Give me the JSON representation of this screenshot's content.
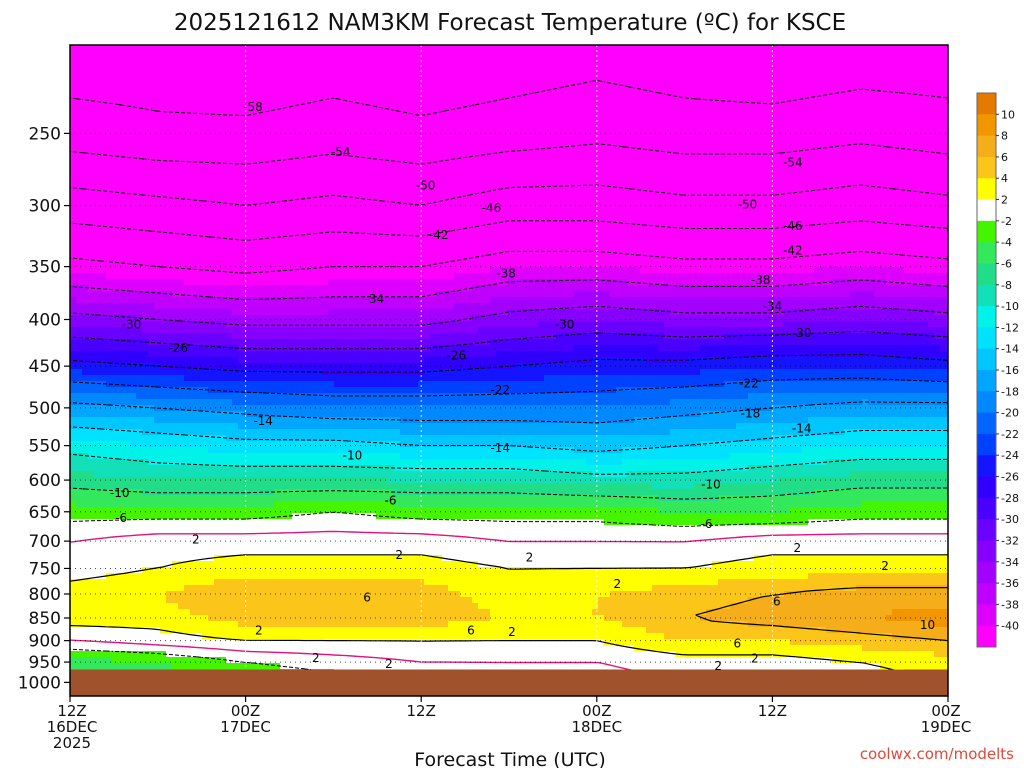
{
  "chart_data": {
    "type": "heatmap",
    "title": "2025121612 NAM3KM Forecast Temperature (ºC) for KSCE",
    "xlabel": "Forecast Time (UTC)",
    "ylabel": "",
    "credit": "coolwx.com/modelts",
    "x_ticks": [
      {
        "hour": 0,
        "line1": "12Z",
        "line2": "16DEC",
        "line3": "2025"
      },
      {
        "hour": 12,
        "line1": "00Z",
        "line2": "17DEC",
        "line3": ""
      },
      {
        "hour": 24,
        "line1": "12Z",
        "line2": "",
        "line3": ""
      },
      {
        "hour": 36,
        "line1": "00Z",
        "line2": "18DEC",
        "line3": ""
      },
      {
        "hour": 48,
        "line1": "12Z",
        "line2": "",
        "line3": ""
      },
      {
        "hour": 60,
        "line1": "00Z",
        "line2": "19DEC",
        "line3": ""
      }
    ],
    "x_range_hours": [
      0,
      60
    ],
    "y_axis": "pressure (hPa), log scale, inverted",
    "y_ticks": [
      250,
      300,
      350,
      400,
      450,
      500,
      550,
      600,
      650,
      700,
      750,
      800,
      850,
      900,
      950,
      1000
    ],
    "y_range": [
      200,
      1035
    ],
    "surface_pressure": 968,
    "colorbar": {
      "labels": [
        "10",
        "8",
        "6",
        "4",
        "2",
        "-2",
        "-4",
        "-6",
        "-8",
        "-10",
        "-12",
        "-14",
        "-16",
        "-18",
        "-20",
        "-22",
        "-24",
        "-26",
        "-28",
        "-30",
        "-32",
        "-34",
        "-36",
        "-38",
        "-40"
      ],
      "bins": [
        {
          "lo": 10,
          "hi": 12,
          "color": "#e57a00"
        },
        {
          "lo": 8,
          "hi": 10,
          "color": "#f29600"
        },
        {
          "lo": 6,
          "hi": 8,
          "color": "#f5ad1a"
        },
        {
          "lo": 4,
          "hi": 6,
          "color": "#fbc51a"
        },
        {
          "lo": 2,
          "hi": 4,
          "color": "#ffff00"
        },
        {
          "lo": -2,
          "hi": 2,
          "color": "#ffffff"
        },
        {
          "lo": -4,
          "hi": -2,
          "color": "#45f500"
        },
        {
          "lo": -6,
          "hi": -4,
          "color": "#33e85a"
        },
        {
          "lo": -8,
          "hi": -6,
          "color": "#22dd88"
        },
        {
          "lo": -10,
          "hi": -8,
          "color": "#11e0b8"
        },
        {
          "lo": -12,
          "hi": -10,
          "color": "#00f2e8"
        },
        {
          "lo": -14,
          "hi": -12,
          "color": "#00e2ff"
        },
        {
          "lo": -16,
          "hi": -14,
          "color": "#00c6ff"
        },
        {
          "lo": -18,
          "hi": -16,
          "color": "#00a6ff"
        },
        {
          "lo": -20,
          "hi": -18,
          "color": "#0088ff"
        },
        {
          "lo": -22,
          "hi": -20,
          "color": "#0066ff"
        },
        {
          "lo": -24,
          "hi": -22,
          "color": "#0040ff"
        },
        {
          "lo": -26,
          "hi": -24,
          "color": "#1414ff"
        },
        {
          "lo": -28,
          "hi": -26,
          "color": "#3000ff"
        },
        {
          "lo": -30,
          "hi": -28,
          "color": "#4a00ff"
        },
        {
          "lo": -32,
          "hi": -30,
          "color": "#6a00ff"
        },
        {
          "lo": -34,
          "hi": -32,
          "color": "#8600ff"
        },
        {
          "lo": -36,
          "hi": -34,
          "color": "#a200ff"
        },
        {
          "lo": -38,
          "hi": -36,
          "color": "#c000ff"
        },
        {
          "lo": -40,
          "hi": -38,
          "color": "#dd00ff"
        },
        {
          "lo": -200,
          "hi": -40,
          "color": "#ff00ff"
        }
      ]
    },
    "profile_times_hours": [
      0,
      6,
      12,
      18,
      24,
      30,
      36,
      42,
      48,
      54,
      60
    ],
    "profile_pressures": [
      200,
      250,
      300,
      350,
      400,
      450,
      500,
      550,
      600,
      650,
      700,
      750,
      800,
      850,
      900,
      950,
      1000
    ],
    "temperature_profiles": [
      [
        -61,
        -56,
        -48,
        -41,
        -33,
        -25,
        -17,
        -11,
        -7,
        -3,
        0,
        1,
        3,
        3,
        0,
        -5,
        -7
      ],
      [
        -61,
        -57,
        -49,
        -42,
        -34,
        -26,
        -18,
        -12,
        -8,
        -3,
        1,
        2,
        4,
        3,
        1,
        -4,
        -6
      ],
      [
        -62,
        -57,
        -50,
        -43,
        -35,
        -27,
        -19,
        -13,
        -8,
        -3,
        1,
        3,
        6,
        5,
        2,
        -2,
        -4
      ],
      [
        -61,
        -56,
        -49,
        -42,
        -35,
        -27,
        -20,
        -13,
        -8,
        -2,
        1,
        3,
        6,
        5,
        2,
        -1,
        -3
      ],
      [
        -62,
        -57,
        -50,
        -42,
        -35,
        -27,
        -20,
        -14,
        -8,
        -3,
        1,
        3,
        5,
        5,
        2,
        0,
        -2
      ],
      [
        -61,
        -56,
        -48,
        -40,
        -33,
        -26,
        -20,
        -14,
        -8,
        -3,
        0,
        2,
        3,
        4,
        2,
        0,
        -1
      ],
      [
        -60,
        -55,
        -48,
        -40,
        -32,
        -25,
        -20,
        -15,
        -9,
        -3,
        0,
        2,
        4,
        4,
        2,
        0,
        -1
      ],
      [
        -61,
        -56,
        -49,
        -41,
        -33,
        -25,
        -19,
        -14,
        -9,
        -4,
        0,
        2,
        5,
        6,
        4,
        1,
        0
      ],
      [
        -62,
        -56,
        -49,
        -41,
        -33,
        -24,
        -18,
        -13,
        -8,
        -4,
        1,
        3,
        6,
        7,
        4,
        1,
        0
      ],
      [
        -61,
        -55,
        -48,
        -40,
        -32,
        -24,
        -17,
        -12,
        -7,
        -3,
        1,
        3,
        7,
        8,
        5,
        2,
        1
      ],
      [
        -61,
        -56,
        -49,
        -41,
        -33,
        -25,
        -17,
        -12,
        -7,
        -3,
        1,
        3,
        7,
        9,
        6,
        3,
        2
      ]
    ],
    "dashed_contour_levels": [
      -58,
      -54,
      -50,
      -46,
      -42,
      -38,
      -34,
      -30,
      -26,
      -22,
      -18,
      -14,
      -10,
      -6,
      -2
    ],
    "solid_contour_levels": [
      2,
      6,
      10
    ],
    "pink_contour_level": 0,
    "contour_labels": [
      {
        "v": "-58",
        "h": 12.5,
        "p": 234
      },
      {
        "v": "-54",
        "h": 18.5,
        "p": 262
      },
      {
        "v": "-50",
        "h": 24.3,
        "p": 285
      },
      {
        "v": "-46",
        "h": 28.8,
        "p": 302
      },
      {
        "v": "-42",
        "h": 25.2,
        "p": 323
      },
      {
        "v": "-38",
        "h": 29.8,
        "p": 356
      },
      {
        "v": "-34",
        "h": 20.8,
        "p": 380
      },
      {
        "v": "-30",
        "h": 4.2,
        "p": 405
      },
      {
        "v": "-26",
        "h": 7.4,
        "p": 430
      },
      {
        "v": "-26",
        "h": 26.4,
        "p": 438
      },
      {
        "v": "-22",
        "h": 29.4,
        "p": 478
      },
      {
        "v": "-30",
        "h": 33.8,
        "p": 405
      },
      {
        "v": "-18",
        "h": 46.5,
        "p": 507
      },
      {
        "v": "-14",
        "h": 13.2,
        "p": 517
      },
      {
        "v": "-14",
        "h": 29.4,
        "p": 553
      },
      {
        "v": "-14",
        "h": 50.0,
        "p": 527
      },
      {
        "v": "-10",
        "h": 19.3,
        "p": 564
      },
      {
        "v": "-10",
        "h": 43.8,
        "p": 607
      },
      {
        "v": "-10",
        "h": 3.4,
        "p": 620
      },
      {
        "v": "-6",
        "h": 21.9,
        "p": 632
      },
      {
        "v": "-6",
        "h": 3.5,
        "p": 660
      },
      {
        "v": "-6",
        "h": 43.5,
        "p": 670
      },
      {
        "v": "-54",
        "h": 49.4,
        "p": 269
      },
      {
        "v": "-50",
        "h": 46.3,
        "p": 299
      },
      {
        "v": "-46",
        "h": 49.4,
        "p": 316
      },
      {
        "v": "-42",
        "h": 49.4,
        "p": 336
      },
      {
        "v": "-38",
        "h": 47.2,
        "p": 362
      },
      {
        "v": "-34",
        "h": 48.0,
        "p": 387
      },
      {
        "v": "-30",
        "h": 50.0,
        "p": 414
      },
      {
        "v": "-22",
        "h": 46.4,
        "p": 470
      },
      {
        "v": "2",
        "h": 8.6,
        "p": 697
      },
      {
        "v": "2",
        "h": 22.5,
        "p": 725
      },
      {
        "v": "2",
        "h": 31.4,
        "p": 730
      },
      {
        "v": "2",
        "h": 37.4,
        "p": 780
      },
      {
        "v": "2",
        "h": 49.7,
        "p": 712
      },
      {
        "v": "2",
        "h": 55.7,
        "p": 745
      },
      {
        "v": "6",
        "h": 20.3,
        "p": 807
      },
      {
        "v": "6",
        "h": 48.3,
        "p": 815
      },
      {
        "v": "6",
        "h": 27.4,
        "p": 877
      },
      {
        "v": "6",
        "h": 45.6,
        "p": 907
      },
      {
        "v": "10",
        "h": 58.6,
        "p": 865
      },
      {
        "v": "2",
        "h": 12.9,
        "p": 877
      },
      {
        "v": "2",
        "h": 30.2,
        "p": 880
      },
      {
        "v": "2",
        "h": 16.8,
        "p": 940
      },
      {
        "v": "2",
        "h": 21.8,
        "p": 955
      },
      {
        "v": "2",
        "h": 46.8,
        "p": 942
      },
      {
        "v": "2",
        "h": 44.3,
        "p": 960
      }
    ]
  }
}
